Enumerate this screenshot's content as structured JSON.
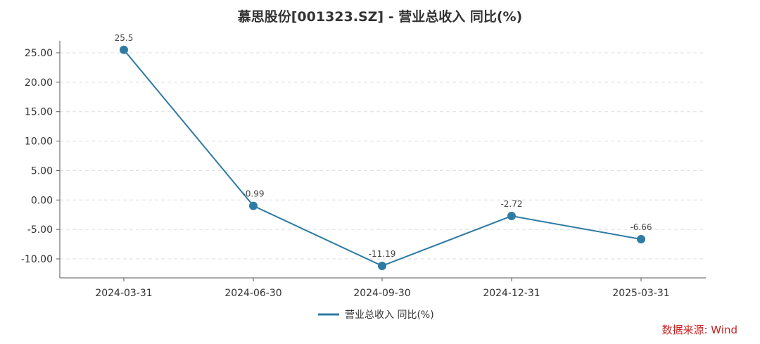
{
  "chart_data": {
    "type": "line",
    "title": "慕思股份[001323.SZ] - 营业总收入 同比(%)",
    "categories": [
      "2024-03-31",
      "2024-06-30",
      "2024-09-30",
      "2024-12-31",
      "2025-03-31"
    ],
    "series": [
      {
        "name": "营业总收入 同比(%)",
        "values": [
          25.5,
          -0.99,
          -11.19,
          -2.72,
          -6.66
        ],
        "data_labels": [
          "25.5",
          "-0.99",
          "-11.19",
          "-2.72",
          "-6.66"
        ],
        "color": "#2e7ba3"
      }
    ],
    "y_ticks": [
      "25.00",
      "20.00",
      "15.00",
      "10.00",
      "5.00",
      "0.00",
      "-5.00",
      "-10.00"
    ],
    "ylim": [
      -13,
      27
    ],
    "grid": "horizontal dashed",
    "legend_position": "bottom-center"
  },
  "source_note": "数据来源: Wind"
}
